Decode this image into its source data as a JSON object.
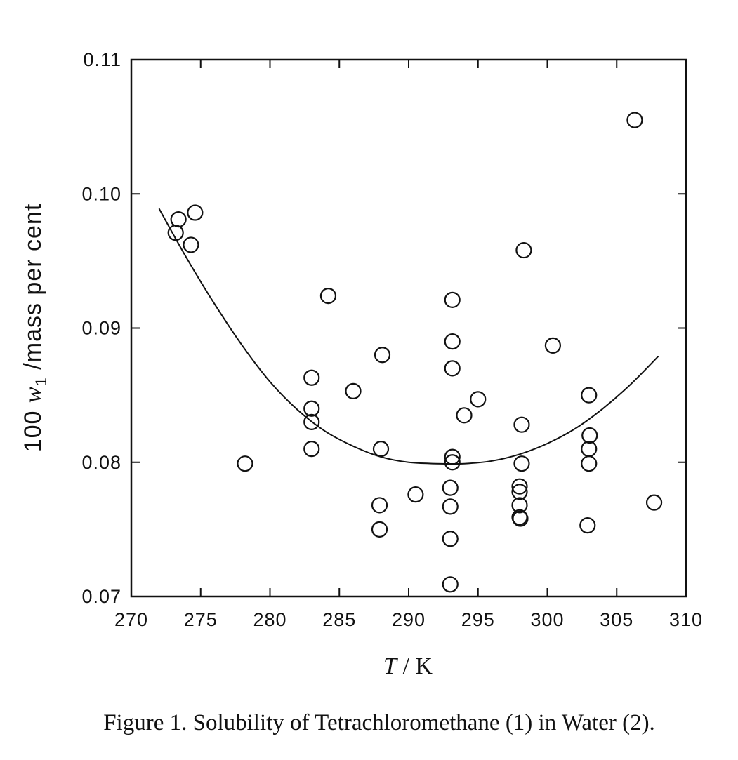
{
  "chart_data": {
    "type": "scatter",
    "title": "",
    "caption": "Figure 1. Solubility of Tetrachloromethane (1) in Water (2).",
    "xlabel": {
      "symbol": "T",
      "separator": " / ",
      "unit": "K"
    },
    "ylabel": {
      "prefix": "100 ",
      "symbol": "w",
      "subscript": "1",
      "suffix": " /mass per cent"
    },
    "xlim": [
      270,
      310
    ],
    "ylim": [
      0.07,
      0.11
    ],
    "xticks": [
      "270",
      "275",
      "280",
      "285",
      "290",
      "295",
      "300",
      "305",
      "310"
    ],
    "yticks": [
      "0.07",
      "0.08",
      "0.09",
      "0.10",
      "0.11"
    ],
    "grid": false,
    "legend": "none",
    "marker": "open-circle",
    "series": [
      {
        "points": [
          [
            273.2,
            0.0971
          ],
          [
            273.4,
            0.0981
          ],
          [
            274.3,
            0.0962
          ],
          [
            274.6,
            0.0986
          ],
          [
            278.2,
            0.0799
          ],
          [
            283.0,
            0.0863
          ],
          [
            283.0,
            0.084
          ],
          [
            283.0,
            0.083
          ],
          [
            283.0,
            0.081
          ],
          [
            284.2,
            0.0924
          ],
          [
            286.0,
            0.0853
          ],
          [
            288.1,
            0.088
          ],
          [
            288.0,
            0.081
          ],
          [
            287.9,
            0.0768
          ],
          [
            287.9,
            0.075
          ],
          [
            290.5,
            0.0776
          ],
          [
            293.15,
            0.0921
          ],
          [
            293.15,
            0.089
          ],
          [
            293.15,
            0.087
          ],
          [
            293.15,
            0.0804
          ],
          [
            293.15,
            0.08
          ],
          [
            293.0,
            0.0781
          ],
          [
            293.0,
            0.0767
          ],
          [
            293.0,
            0.0743
          ],
          [
            293.0,
            0.0709
          ],
          [
            294.0,
            0.0835
          ],
          [
            295.0,
            0.0847
          ],
          [
            298.3,
            0.0958
          ],
          [
            298.15,
            0.0828
          ],
          [
            298.15,
            0.0799
          ],
          [
            298.0,
            0.0782
          ],
          [
            298.0,
            0.0778
          ],
          [
            298.0,
            0.0768
          ],
          [
            298.0,
            0.0759
          ],
          [
            298.05,
            0.0758
          ],
          [
            300.4,
            0.0887
          ],
          [
            303.0,
            0.085
          ],
          [
            303.05,
            0.082
          ],
          [
            303.0,
            0.081
          ],
          [
            303.0,
            0.0799
          ],
          [
            302.9,
            0.0753
          ],
          [
            306.3,
            0.1055
          ],
          [
            307.7,
            0.077
          ]
        ]
      },
      {
        "style": "fit-curve",
        "x": [
          272,
          274,
          276,
          278,
          280,
          282,
          284,
          286,
          288,
          290,
          292,
          294,
          296,
          298,
          300,
          302,
          304,
          306,
          308
        ],
        "y": [
          0.0989,
          0.0952,
          0.0918,
          0.0887,
          0.086,
          0.0839,
          0.0823,
          0.0812,
          0.0804,
          0.08,
          0.0799,
          0.0799,
          0.0801,
          0.0806,
          0.0814,
          0.0825,
          0.084,
          0.0858,
          0.0879
        ]
      }
    ]
  }
}
